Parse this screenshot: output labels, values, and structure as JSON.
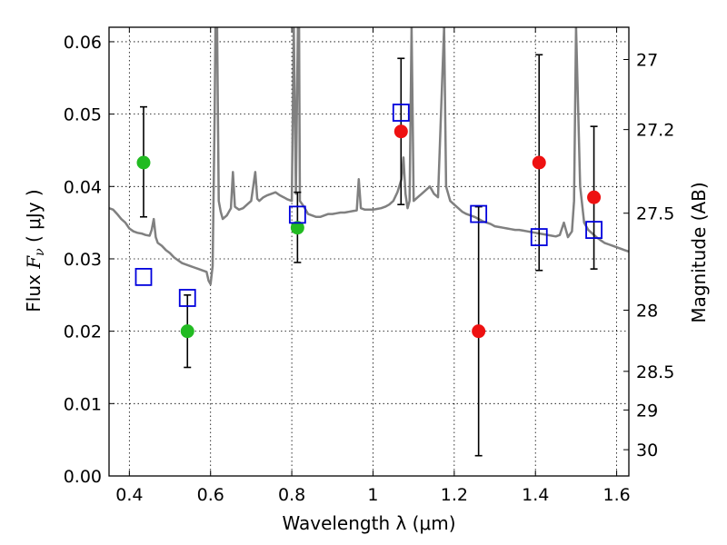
{
  "chart_data": {
    "type": "scatter",
    "xlabel": "Wavelength  λ (μm)",
    "ylabel": "Flux  F_ν  ( μJy )",
    "y2label": "Magnitude (AB)",
    "xlim": [
      0.35,
      1.63
    ],
    "ylim": [
      0.0,
      0.062
    ],
    "grid": true,
    "x_ticks": [
      {
        "value": 0.4,
        "label": "0.4"
      },
      {
        "value": 0.6,
        "label": "0.6"
      },
      {
        "value": 0.8,
        "label": "0.8"
      },
      {
        "value": 1.0,
        "label": "1"
      },
      {
        "value": 1.2,
        "label": "1.2"
      },
      {
        "value": 1.4,
        "label": "1.4"
      },
      {
        "value": 1.6,
        "label": "1.6"
      }
    ],
    "y_ticks": [
      {
        "value": 0.0,
        "label": "0.00"
      },
      {
        "value": 0.01,
        "label": "0.01"
      },
      {
        "value": 0.02,
        "label": "0.02"
      },
      {
        "value": 0.03,
        "label": "0.03"
      },
      {
        "value": 0.04,
        "label": "0.04"
      },
      {
        "value": 0.05,
        "label": "0.05"
      },
      {
        "value": 0.06,
        "label": "0.06"
      }
    ],
    "y2_ticks": [
      {
        "value": 27.0,
        "label": "27"
      },
      {
        "value": 27.2,
        "label": "27.2"
      },
      {
        "value": 27.5,
        "label": "27.5"
      },
      {
        "value": 28.0,
        "label": "28"
      },
      {
        "value": 28.5,
        "label": "28.5"
      },
      {
        "value": 29.0,
        "label": "29"
      },
      {
        "value": 30.0,
        "label": "30"
      }
    ],
    "series": [
      {
        "marker": "circle",
        "color": "#22bb22",
        "points": [
          {
            "x": 0.435,
            "y": 0.0433,
            "lo": 0.0358,
            "hi": 0.051
          },
          {
            "x": 0.543,
            "y": 0.02,
            "lo": 0.015,
            "hi": 0.025
          },
          {
            "x": 0.814,
            "y": 0.0343,
            "lo": 0.0295,
            "hi": 0.0392
          }
        ]
      },
      {
        "marker": "circle",
        "color": "#ee1111",
        "points": [
          {
            "x": 1.069,
            "y": 0.0476,
            "lo": 0.0375,
            "hi": 0.0577
          },
          {
            "x": 1.26,
            "y": 0.02,
            "lo": 0.0028,
            "hi": 0.0372
          },
          {
            "x": 1.409,
            "y": 0.0433,
            "lo": 0.0284,
            "hi": 0.0582
          },
          {
            "x": 1.544,
            "y": 0.0385,
            "lo": 0.0286,
            "hi": 0.0483
          }
        ]
      },
      {
        "marker": "square-open",
        "color": "#0000dd",
        "points": [
          {
            "x": 0.435,
            "y": 0.0275
          },
          {
            "x": 0.543,
            "y": 0.0246
          },
          {
            "x": 0.814,
            "y": 0.0361
          },
          {
            "x": 1.069,
            "y": 0.0502
          },
          {
            "x": 1.26,
            "y": 0.0362
          },
          {
            "x": 1.409,
            "y": 0.033
          },
          {
            "x": 1.544,
            "y": 0.034
          }
        ]
      },
      {
        "type": "line",
        "color": "#808080",
        "x": [
          0.35,
          0.36,
          0.37,
          0.38,
          0.39,
          0.4,
          0.41,
          0.42,
          0.43,
          0.44,
          0.45,
          0.455,
          0.46,
          0.465,
          0.47,
          0.48,
          0.49,
          0.5,
          0.51,
          0.52,
          0.53,
          0.54,
          0.55,
          0.56,
          0.57,
          0.58,
          0.59,
          0.595,
          0.6,
          0.605,
          0.61,
          0.612,
          0.616,
          0.62,
          0.625,
          0.63,
          0.64,
          0.65,
          0.655,
          0.66,
          0.67,
          0.68,
          0.69,
          0.7,
          0.71,
          0.715,
          0.72,
          0.73,
          0.74,
          0.75,
          0.76,
          0.77,
          0.78,
          0.79,
          0.8,
          0.805,
          0.81,
          0.815,
          0.818,
          0.82,
          0.83,
          0.84,
          0.85,
          0.86,
          0.87,
          0.88,
          0.89,
          0.9,
          0.91,
          0.92,
          0.93,
          0.94,
          0.95,
          0.96,
          0.965,
          0.97,
          0.98,
          0.99,
          1.0,
          1.01,
          1.02,
          1.03,
          1.04,
          1.05,
          1.06,
          1.07,
          1.075,
          1.08,
          1.085,
          1.09,
          1.095,
          1.1,
          1.11,
          1.12,
          1.13,
          1.14,
          1.15,
          1.16,
          1.17,
          1.175,
          1.18,
          1.19,
          1.2,
          1.21,
          1.22,
          1.23,
          1.24,
          1.25,
          1.26,
          1.27,
          1.28,
          1.29,
          1.3,
          1.31,
          1.32,
          1.33,
          1.34,
          1.35,
          1.36,
          1.37,
          1.38,
          1.39,
          1.4,
          1.41,
          1.42,
          1.43,
          1.44,
          1.45,
          1.46,
          1.47,
          1.48,
          1.49,
          1.495,
          1.5,
          1.51,
          1.52,
          1.53,
          1.54,
          1.55,
          1.56,
          1.57,
          1.58,
          1.59,
          1.6,
          1.61,
          1.62,
          1.63
        ],
        "y": [
          0.037,
          0.0368,
          0.0362,
          0.0355,
          0.035,
          0.0342,
          0.0338,
          0.0336,
          0.0335,
          0.0333,
          0.0332,
          0.034,
          0.0355,
          0.033,
          0.0322,
          0.0318,
          0.0312,
          0.0308,
          0.0302,
          0.0298,
          0.0294,
          0.0292,
          0.029,
          0.0288,
          0.0286,
          0.0284,
          0.0282,
          0.027,
          0.0265,
          0.029,
          0.05,
          0.062,
          0.062,
          0.038,
          0.0365,
          0.0355,
          0.036,
          0.037,
          0.042,
          0.0372,
          0.0368,
          0.037,
          0.0375,
          0.038,
          0.042,
          0.0383,
          0.038,
          0.0385,
          0.0388,
          0.039,
          0.0392,
          0.0388,
          0.0385,
          0.0382,
          0.038,
          0.062,
          0.039,
          0.062,
          0.062,
          0.038,
          0.0372,
          0.0362,
          0.036,
          0.0358,
          0.0358,
          0.036,
          0.0362,
          0.0362,
          0.0363,
          0.0364,
          0.0364,
          0.0365,
          0.0366,
          0.0367,
          0.041,
          0.037,
          0.0368,
          0.0368,
          0.0368,
          0.0369,
          0.037,
          0.0372,
          0.0375,
          0.038,
          0.0392,
          0.041,
          0.044,
          0.039,
          0.037,
          0.038,
          0.062,
          0.038,
          0.0385,
          0.039,
          0.0395,
          0.04,
          0.039,
          0.0385,
          0.054,
          0.062,
          0.04,
          0.038,
          0.0375,
          0.037,
          0.0365,
          0.0362,
          0.036,
          0.0358,
          0.0355,
          0.0352,
          0.035,
          0.0348,
          0.0345,
          0.0344,
          0.0343,
          0.0342,
          0.0341,
          0.034,
          0.034,
          0.0339,
          0.0338,
          0.0337,
          0.0336,
          0.0335,
          0.0334,
          0.0333,
          0.0332,
          0.0331,
          0.0333,
          0.035,
          0.033,
          0.0338,
          0.038,
          0.062,
          0.04,
          0.035,
          0.034,
          0.0335,
          0.033,
          0.0326,
          0.0322,
          0.032,
          0.0318,
          0.0316,
          0.0314,
          0.0312,
          0.031
        ]
      }
    ]
  }
}
